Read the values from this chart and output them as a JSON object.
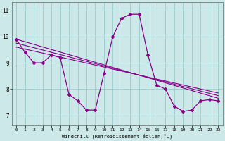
{
  "xlabel": "Windchill (Refroidissement éolien,°C)",
  "bg_color": "#cce8e8",
  "line_color": "#880088",
  "xlim": [
    -0.5,
    23.5
  ],
  "ylim": [
    6.6,
    11.3
  ],
  "xticks": [
    0,
    1,
    2,
    3,
    4,
    5,
    6,
    7,
    8,
    9,
    10,
    11,
    12,
    13,
    14,
    15,
    16,
    17,
    18,
    19,
    20,
    21,
    22,
    23
  ],
  "yticks": [
    7,
    8,
    9,
    10,
    11
  ],
  "curve_x": [
    0,
    1,
    2,
    3,
    4,
    5,
    6,
    7,
    8,
    9,
    10,
    11,
    12,
    13,
    14,
    15,
    16,
    17,
    18,
    19,
    20,
    21,
    22,
    23
  ],
  "curve_y": [
    9.9,
    9.4,
    9.0,
    9.0,
    9.3,
    9.2,
    7.8,
    7.55,
    7.2,
    7.2,
    8.6,
    10.0,
    10.7,
    10.85,
    10.85,
    9.3,
    8.15,
    8.0,
    7.35,
    7.15,
    7.2,
    7.55,
    7.6,
    7.55
  ],
  "trend1_x": [
    0,
    23
  ],
  "trend1_y": [
    9.9,
    7.65
  ],
  "trend2_x": [
    0,
    23
  ],
  "trend2_y": [
    9.75,
    7.75
  ],
  "trend3_x": [
    0,
    23
  ],
  "trend3_y": [
    9.6,
    7.85
  ],
  "grid_color": "#99cccc",
  "grid_lw": 0.6
}
